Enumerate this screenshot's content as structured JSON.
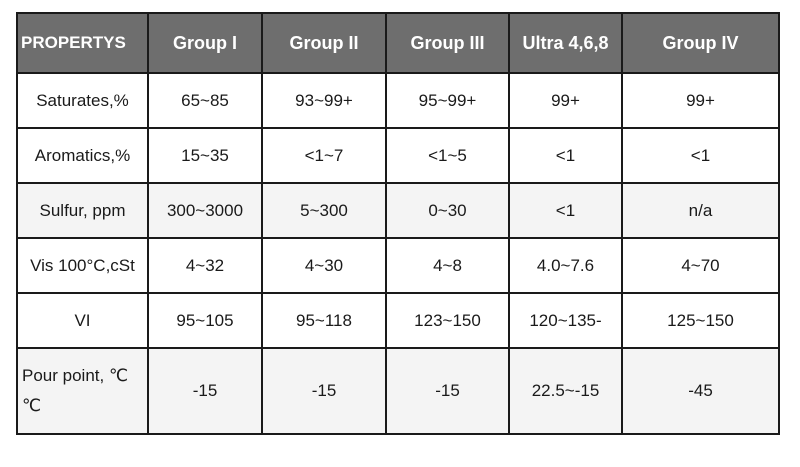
{
  "table": {
    "headers": [
      "PROPERTYS",
      "Group I",
      "Group II",
      "Group III",
      "Ultra 4,6,8",
      "Group IV"
    ],
    "rows": [
      {
        "label": "Saturates,%",
        "cells": [
          "65~85",
          "93~99+",
          "95~99+",
          "99+",
          "99+"
        ]
      },
      {
        "label": "Aromatics,%",
        "cells": [
          "15~35",
          "<1~7",
          "<1~5",
          "<1",
          "<1"
        ]
      },
      {
        "label": "Sulfur, ppm",
        "cells": [
          "300~3000",
          "5~300",
          "0~30",
          "<1",
          "n/a"
        ]
      },
      {
        "label": "Vis 100°C,cSt",
        "cells": [
          "4~32",
          "4~30",
          "4~8",
          "4.0~7.6",
          "4~70"
        ]
      },
      {
        "label": "VI",
        "cells": [
          "95~105",
          "95~118",
          "123~150",
          "120~135-",
          "125~150"
        ]
      },
      {
        "label_line1": "Pour point, ℃",
        "label_line2": "℃",
        "cells": [
          "-15",
          "-15",
          "-15",
          "22.5~-15",
          "-45"
        ]
      }
    ]
  }
}
